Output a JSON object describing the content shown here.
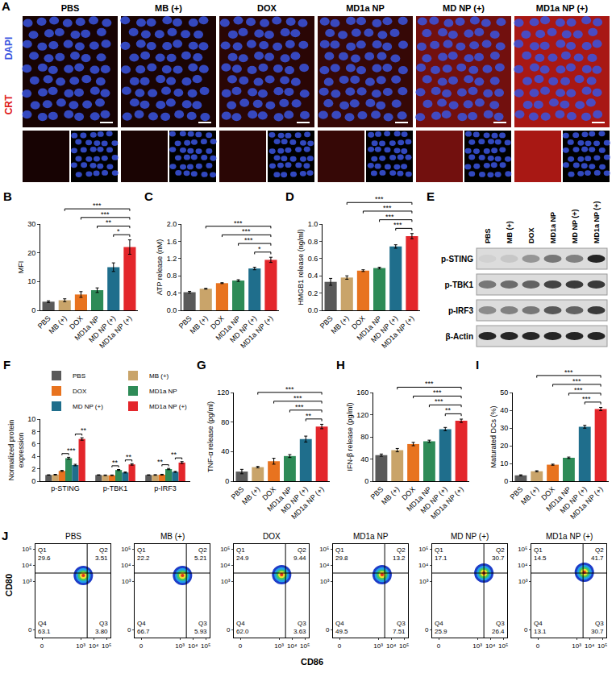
{
  "images": {
    "panel": "A",
    "channels": [
      {
        "label": "DAPI",
        "color": "#3a55e0"
      },
      {
        "label": "CRT",
        "color": "#e0201b"
      }
    ],
    "groups": [
      "PBS",
      "MB (+)",
      "DOX",
      "MD1a NP",
      "MD NP (+)",
      "MD1a NP (+)"
    ]
  },
  "chart_data": [
    {
      "panel": "B",
      "type": "bar",
      "y_label": "MFI",
      "categories": [
        "PBS",
        "MB (+)",
        "DOX",
        "MD1a NP",
        "MD NP (+)",
        "MD1a NP (+)"
      ],
      "values": [
        3,
        3.5,
        5.5,
        7,
        15,
        22
      ],
      "errors": [
        0.3,
        0.5,
        1.0,
        0.8,
        1.5,
        2.5
      ],
      "colors": [
        "#5a5a5a",
        "#c9a46a",
        "#e8731f",
        "#2e8b57",
        "#1f6e8c",
        "#e3262b"
      ],
      "ylim": [
        0,
        30
      ],
      "yticks": [
        0,
        10,
        20,
        30
      ],
      "comparisons": [
        {
          "from": "MB (+)",
          "to": "MD1a NP (+)",
          "label": "***"
        },
        {
          "from": "DOX",
          "to": "MD1a NP (+)",
          "label": "***"
        },
        {
          "from": "MD1a NP",
          "to": "MD1a NP (+)",
          "label": "**"
        },
        {
          "from": "MD NP (+)",
          "to": "MD1a NP (+)",
          "label": "*"
        }
      ]
    },
    {
      "panel": "C",
      "type": "bar",
      "y_label": "ATP release (nM)",
      "categories": [
        "PBS",
        "MB (+)",
        "DOX",
        "MD1a NP",
        "MD NP (+)",
        "MD1a NP (+)"
      ],
      "values": [
        0.42,
        0.5,
        0.63,
        0.69,
        0.97,
        1.17
      ],
      "errors": [
        0.02,
        0.01,
        0.01,
        0.02,
        0.03,
        0.06
      ],
      "colors": [
        "#5a5a5a",
        "#c9a46a",
        "#e8731f",
        "#2e8b57",
        "#1f6e8c",
        "#e3262b"
      ],
      "ylim": [
        0,
        2
      ],
      "yticks": [
        {
          "value": 0,
          "label": "0.0"
        },
        0.4,
        0.8,
        1.2,
        1.6,
        {
          "value": 2,
          "label": "2.0"
        }
      ],
      "comparisons": [
        {
          "from": "MB (+)",
          "to": "MD1a NP (+)",
          "label": "***"
        },
        {
          "from": "DOX",
          "to": "MD1a NP (+)",
          "label": "***"
        },
        {
          "from": "MD1a NP",
          "to": "MD1a NP (+)",
          "label": "***"
        },
        {
          "from": "MD NP (+)",
          "to": "MD1a NP (+)",
          "label": "*"
        }
      ]
    },
    {
      "panel": "D",
      "type": "bar",
      "y_label": "HMGB1 release (ng/ml)",
      "categories": [
        "PBS",
        "MB (+)",
        "DOX",
        "MD1a NP",
        "MD NP (+)",
        "MD1a NP (+)"
      ],
      "values": [
        0.33,
        0.38,
        0.46,
        0.49,
        0.74,
        0.86
      ],
      "errors": [
        0.04,
        0.02,
        0.01,
        0.01,
        0.02,
        0.03
      ],
      "colors": [
        "#5a5a5a",
        "#c9a46a",
        "#e8731f",
        "#2e8b57",
        "#1f6e8c",
        "#e3262b"
      ],
      "ylim": [
        0,
        1
      ],
      "yticks": [
        {
          "value": 0,
          "label": "0.0"
        },
        0.2,
        0.4,
        0.6,
        0.8,
        {
          "value": 1,
          "label": "1.0"
        }
      ],
      "comparisons": [
        {
          "from": "MB (+)",
          "to": "MD1a NP (+)",
          "label": "***"
        },
        {
          "from": "DOX",
          "to": "MD1a NP (+)",
          "label": "***"
        },
        {
          "from": "MD1a NP",
          "to": "MD1a NP (+)",
          "label": "***"
        },
        {
          "from": "MD NP (+)",
          "to": "MD1a NP (+)",
          "label": "***"
        }
      ]
    },
    {
      "panel": "F",
      "type": "bar",
      "y_label": "Normalized protein expression",
      "categories": [
        "p-STING",
        "p-TBK1",
        "p-IRF3"
      ],
      "series": [
        {
          "name": "PBS",
          "color": "#5a5a5a",
          "values": [
            1,
            1,
            1
          ],
          "errors": [
            0.03,
            0.03,
            0.03
          ]
        },
        {
          "name": "MB (+)",
          "color": "#c9a46a",
          "values": [
            1.05,
            0.95,
            1.0
          ],
          "errors": [
            0.05,
            0.05,
            0.05
          ]
        },
        {
          "name": "DOX",
          "color": "#e8731f",
          "values": [
            1.65,
            0.95,
            1.05
          ],
          "errors": [
            0.08,
            0.05,
            0.06
          ]
        },
        {
          "name": "MD1a NP",
          "color": "#2e8b57",
          "values": [
            3.7,
            1.8,
            1.95
          ],
          "errors": [
            0.15,
            0.08,
            0.1
          ]
        },
        {
          "name": "MD NP (+)",
          "color": "#1f6e8c",
          "values": [
            2.6,
            1.4,
            1.5
          ],
          "errors": [
            0.12,
            0.08,
            0.08
          ]
        },
        {
          "name": "MD1a NP (+)",
          "color": "#e3262b",
          "values": [
            6.8,
            2.7,
            3.0
          ],
          "errors": [
            0.2,
            0.12,
            0.15
          ]
        }
      ],
      "ylim": [
        0,
        10
      ],
      "yticks": [
        0,
        2,
        4,
        6,
        8,
        10
      ],
      "legend": "top",
      "comparisons": [
        {
          "category": "p-STING",
          "from": "DOX",
          "to": "MD1a NP",
          "label": "***"
        },
        {
          "category": "p-STING",
          "from": "MD NP (+)",
          "to": "MD1a NP (+)",
          "label": "**"
        },
        {
          "category": "p-TBK1",
          "from": "DOX",
          "to": "MD1a NP",
          "label": "**"
        },
        {
          "category": "p-TBK1",
          "from": "MD NP (+)",
          "to": "MD1a NP (+)",
          "label": "**"
        },
        {
          "category": "p-IRF3",
          "from": "DOX",
          "to": "MD1a NP",
          "label": "**"
        },
        {
          "category": "p-IRF3",
          "from": "MD NP (+)",
          "to": "MD1a NP (+)",
          "label": "**"
        }
      ]
    },
    {
      "panel": "G",
      "type": "bar",
      "y_label": "TNF-α release (pg/ml)",
      "categories": [
        "PBS",
        "MB (+)",
        "DOX",
        "MD1a NP",
        "MD NP (+)",
        "MD1a NP (+)"
      ],
      "values": [
        13,
        19,
        27,
        34,
        57,
        74
      ],
      "errors": [
        3,
        1,
        4,
        2,
        4,
        3
      ],
      "colors": [
        "#5a5a5a",
        "#c9a46a",
        "#e8731f",
        "#2e8b57",
        "#1f6e8c",
        "#e3262b"
      ],
      "ylim": [
        0,
        120
      ],
      "yticks": [
        0,
        40,
        80,
        120
      ],
      "comparisons": [
        {
          "from": "MB (+)",
          "to": "MD1a NP (+)",
          "label": "***"
        },
        {
          "from": "DOX",
          "to": "MD1a NP (+)",
          "label": "***"
        },
        {
          "from": "MD1a NP",
          "to": "MD1a NP (+)",
          "label": "***"
        },
        {
          "from": "MD NP (+)",
          "to": "MD1a NP (+)",
          "label": "**"
        }
      ]
    },
    {
      "panel": "H",
      "type": "bar",
      "y_label": "IFN-β release (pg/ml)",
      "categories": [
        "PBS",
        "MB (+)",
        "DOX",
        "MD1a NP",
        "MD NP (+)",
        "MD1a NP (+)"
      ],
      "values": [
        47,
        56,
        67,
        72,
        94,
        109
      ],
      "errors": [
        2,
        3,
        3,
        2,
        3,
        3
      ],
      "colors": [
        "#5a5a5a",
        "#c9a46a",
        "#e8731f",
        "#2e8b57",
        "#1f6e8c",
        "#e3262b"
      ],
      "ylim": [
        0,
        160
      ],
      "yticks": [
        0,
        40,
        80,
        120,
        160
      ],
      "comparisons": [
        {
          "from": "MB (+)",
          "to": "MD1a NP (+)",
          "label": "***"
        },
        {
          "from": "DOX",
          "to": "MD1a NP (+)",
          "label": "***"
        },
        {
          "from": "MD1a NP",
          "to": "MD1a NP (+)",
          "label": "***"
        },
        {
          "from": "MD NP (+)",
          "to": "MD1a NP (+)",
          "label": "**"
        }
      ]
    },
    {
      "panel": "I",
      "type": "bar",
      "y_label": "Maturated DCs (%)",
      "categories": [
        "PBS",
        "MB (+)",
        "DOX",
        "MD1a NP",
        "MD NP (+)",
        "MD1a NP (+)"
      ],
      "values": [
        3.3,
        5.6,
        9.3,
        13.2,
        30.7,
        40.7
      ],
      "errors": [
        0.3,
        0.3,
        0.3,
        0.4,
        0.8,
        0.9
      ],
      "colors": [
        "#5a5a5a",
        "#c9a46a",
        "#e8731f",
        "#2e8b57",
        "#1f6e8c",
        "#e3262b"
      ],
      "ylim": [
        0,
        50
      ],
      "yticks": [
        0,
        10,
        20,
        30,
        40,
        50
      ],
      "comparisons": [
        {
          "from": "MB (+)",
          "to": "MD1a NP (+)",
          "label": "***"
        },
        {
          "from": "DOX",
          "to": "MD1a NP (+)",
          "label": "***"
        },
        {
          "from": "MD1a NP",
          "to": "MD1a NP (+)",
          "label": "***"
        },
        {
          "from": "MD NP (+)",
          "to": "MD1a NP (+)",
          "label": "***"
        }
      ]
    }
  ],
  "blot": {
    "panel": "E",
    "lanes": [
      "PBS",
      "MB (+)",
      "DOX",
      "MD1a NP",
      "MD NP (+)",
      "MD1a NP (+)"
    ],
    "rows": [
      {
        "label": "p-STING",
        "intensity": [
          0.05,
          0.1,
          0.35,
          0.5,
          0.45,
          0.9
        ]
      },
      {
        "label": "p-TBK1",
        "intensity": [
          0.5,
          0.55,
          0.6,
          0.75,
          0.8,
          0.8
        ]
      },
      {
        "label": "p-IRF3",
        "intensity": [
          0.4,
          0.45,
          0.5,
          0.65,
          0.6,
          0.8
        ]
      },
      {
        "label": "β-Actin",
        "intensity": [
          0.9,
          0.9,
          0.9,
          0.9,
          0.9,
          0.9
        ]
      }
    ]
  },
  "flow": {
    "panel": "J",
    "type": "contour",
    "x_label": "CD86",
    "y_label": "CD80",
    "xlim": [
      -0.5,
      5.3
    ],
    "ylim": [
      -0.5,
      5.3
    ],
    "xticks": [
      0,
      {
        "value": 3,
        "label": "10³"
      },
      {
        "value": 4,
        "label": "10⁴"
      },
      {
        "value": 5,
        "label": "10⁵"
      }
    ],
    "yticks": [
      0,
      {
        "value": 3,
        "label": "10³"
      },
      {
        "value": 4,
        "label": "10⁴"
      },
      {
        "value": 5,
        "label": "10⁵"
      }
    ],
    "gate": {
      "x": 3.5,
      "y": 3.5
    },
    "quadrant_names": [
      "Q1",
      "Q2",
      "Q3",
      "Q4"
    ],
    "plots": [
      {
        "title": "PBS",
        "center": [
          3.2,
          3.35
        ],
        "values": [
          29.6,
          3.51,
          3.8,
          63.1
        ],
        "value_labels": [
          "29.6",
          "3.51",
          "3.80",
          "63.1"
        ]
      },
      {
        "title": "MB (+)",
        "center": [
          3.2,
          3.35
        ],
        "values": [
          22.2,
          5.21,
          5.93,
          66.7
        ]
      },
      {
        "title": "DOX",
        "center": [
          3.2,
          3.4
        ],
        "values": [
          24.9,
          9.44,
          3.63,
          62.0
        ],
        "value_labels": [
          "24.9",
          "9.44",
          "3.63",
          "62.0"
        ]
      },
      {
        "title": "MD1a NP",
        "center": [
          3.3,
          3.4
        ],
        "values": [
          29.8,
          13.2,
          7.51,
          49.5
        ]
      },
      {
        "title": "MD NP (+)",
        "center": [
          3.5,
          3.5
        ],
        "values": [
          17.1,
          30.7,
          26.4,
          25.9
        ]
      },
      {
        "title": "MD1a NP (+)",
        "center": [
          3.6,
          3.55
        ],
        "values": [
          14.5,
          41.7,
          30.7,
          13.1
        ]
      }
    ]
  }
}
